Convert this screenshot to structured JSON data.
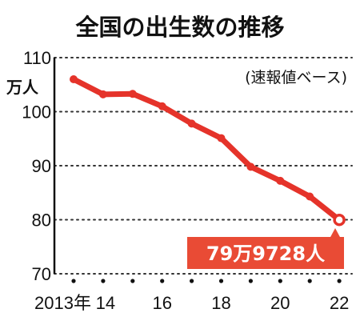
{
  "chart_data": {
    "type": "line",
    "title": "全国の出生数の推移",
    "subtitle": "(速報値ベース)",
    "y_unit_label": "万人",
    "x_tick_labels": [
      "2013年",
      "14",
      "16",
      "18",
      "20",
      "22"
    ],
    "y_tick_labels": [
      "110",
      "100",
      "90",
      "80",
      "70"
    ],
    "ylim": [
      70,
      110
    ],
    "x": [
      2013,
      2014,
      2015,
      2016,
      2017,
      2018,
      2019,
      2020,
      2021,
      2022
    ],
    "series": [
      {
        "values": [
          106.0,
          103.2,
          103.3,
          101.0,
          97.8,
          95.1,
          89.8,
          87.2,
          84.3,
          79.97
        ]
      }
    ],
    "annotation": "79万9728人",
    "grid": true,
    "colors": {
      "line": "#e5332a",
      "callout_bg": "#e94b35"
    }
  }
}
